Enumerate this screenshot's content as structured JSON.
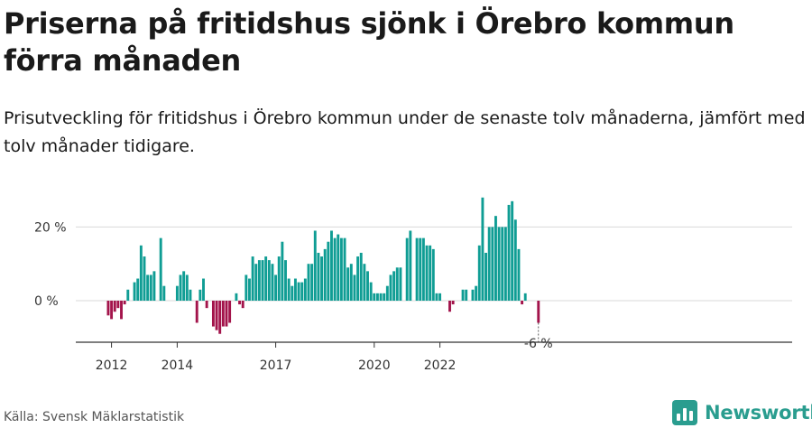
{
  "header": {
    "title": "Priserna på fritidshus sjönk i Örebro kommun förra månaden",
    "subtitle": "Prisutveckling för fritidshus i Örebro kommun under de senaste tolv månaderna, jämfört med tolv månader tidigare."
  },
  "footer": {
    "source": "Källa: Svensk Mäklarstatistik",
    "brand": "Newsworthy"
  },
  "colors": {
    "positive": "#0f9d94",
    "negative": "#a3144b",
    "grid": "#d9d9d9",
    "axis": "#333333",
    "brand": "#2a9d8f"
  },
  "icons": {
    "brand": "newsworthy-logo-icon"
  },
  "chart_data": {
    "type": "bar",
    "ylabel": "",
    "xlabel": "",
    "unit": "%",
    "ylim": [
      -11,
      28
    ],
    "y_ticks": [
      {
        "value": 0,
        "label": "0 %"
      },
      {
        "value": 20,
        "label": "20 %"
      }
    ],
    "x_ticks": [
      {
        "index": 1,
        "label": "2012"
      },
      {
        "index": 21,
        "label": "2014"
      },
      {
        "index": 51,
        "label": "2017"
      },
      {
        "index": 81,
        "label": "2020"
      },
      {
        "index": 101,
        "label": "2022"
      }
    ],
    "last_value_label": "-6 %",
    "grid": true,
    "legend": "none",
    "values": [
      -4,
      -5,
      -3,
      -2,
      -5,
      -1,
      3,
      0,
      5,
      6,
      15,
      12,
      7,
      7,
      8,
      0,
      17,
      4,
      0,
      0,
      0,
      4,
      7,
      8,
      7,
      3,
      0,
      -6,
      3,
      6,
      -2,
      0,
      -7,
      -8,
      -9,
      -7,
      -7,
      -6,
      0,
      2,
      -1,
      -2,
      7,
      6,
      12,
      10,
      11,
      11,
      12,
      11,
      10,
      7,
      12,
      16,
      11,
      6,
      4,
      6,
      5,
      5,
      6,
      10,
      10,
      19,
      13,
      12,
      14,
      16,
      19,
      17,
      18,
      17,
      17,
      9,
      10,
      7,
      12,
      13,
      10,
      8,
      5,
      2,
      2,
      2,
      2,
      4,
      7,
      8,
      9,
      9,
      0,
      17,
      19,
      0,
      17,
      17,
      17,
      15,
      15,
      14,
      2,
      2,
      0,
      0,
      -3,
      -1,
      0,
      0,
      3,
      3,
      0,
      3,
      4,
      15,
      28,
      13,
      20,
      20,
      23,
      20,
      20,
      20,
      26,
      27,
      22,
      14,
      -1,
      2,
      0,
      0,
      0,
      -6
    ]
  }
}
